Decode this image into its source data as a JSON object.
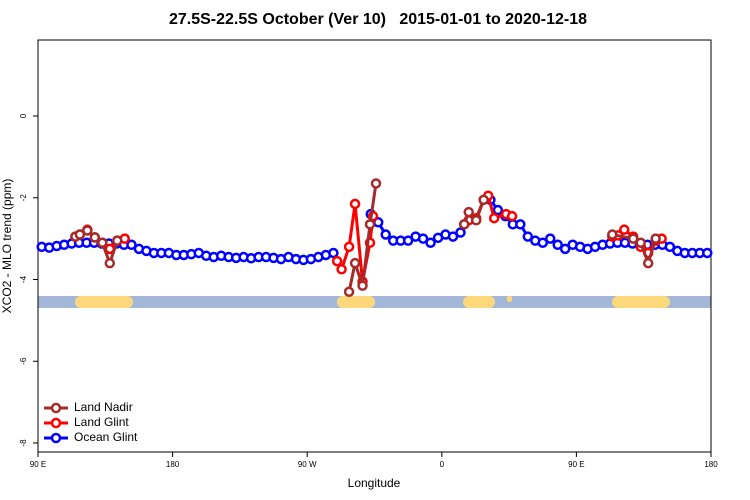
{
  "chart_data": {
    "type": "line",
    "title": "27.5S-22.5S October (Ver 10)   2015-01-01 to 2020-12-18",
    "x_label": "Longitude",
    "y_label": "XCO2 - MLO trend (ppm)",
    "xlim": [
      90,
      540
    ],
    "ylim": [
      -8.22,
      1.86
    ],
    "xticks": [
      {
        "value": 90,
        "label": "90 E"
      },
      {
        "value": 180,
        "label": "180"
      },
      {
        "value": 270,
        "label": "90 W"
      },
      {
        "value": 360,
        "label": "0"
      },
      {
        "value": 450,
        "label": "90 E"
      },
      {
        "value": 540,
        "label": "180"
      }
    ],
    "yticks": [
      0,
      -2,
      -4,
      -6,
      -8
    ],
    "legend": "bottom-left",
    "series": [
      {
        "name": "Land Nadir",
        "color": "#a52a2a",
        "x": [
          115,
          118,
          123,
          128,
          133,
          138,
          143,
          220,
          298,
          302,
          307,
          312,
          316,
          340,
          375,
          378,
          383,
          388,
          440,
          474,
          488,
          493,
          498,
          503
        ],
        "values": [
          -2.95,
          -2.9,
          -2.8,
          -2.97,
          -3.1,
          -3.6,
          -3.05,
          null,
          -4.3,
          -3.6,
          -4.15,
          -2.65,
          -1.65,
          null,
          -2.65,
          -2.35,
          -2.55,
          -2.05,
          null,
          -2.9,
          -3.0,
          -3.1,
          -3.6,
          -3.0
        ]
      },
      {
        "name": "Land Glint",
        "color": "#ff0000",
        "x": [
          115,
          118,
          123,
          128,
          133,
          138,
          143,
          148,
          220,
          290,
          293,
          298,
          302,
          307,
          312,
          314,
          340,
          375,
          378,
          383,
          388,
          391,
          395,
          403,
          407,
          440,
          474,
          478,
          482,
          488,
          493,
          498,
          503,
          507
        ],
        "values": [
          -2.95,
          -2.9,
          -2.78,
          -2.97,
          -3.1,
          -3.25,
          -3.05,
          -3.0,
          null,
          -3.55,
          -3.75,
          -3.2,
          -2.15,
          -4.05,
          -3.1,
          -2.45,
          null,
          -2.65,
          -2.55,
          -2.5,
          -2.05,
          -1.95,
          -2.5,
          -2.4,
          -2.45,
          null,
          -2.95,
          -2.92,
          -2.78,
          -2.95,
          -3.2,
          -3.35,
          -3.05,
          -3.0
        ]
      },
      {
        "name": "Ocean Glint",
        "color": "#0000ff",
        "x": [
          92.5,
          97.5,
          102.5,
          107.5,
          112.5,
          117.5,
          122.5,
          127.5,
          132.5,
          137.5,
          142.5,
          147.5,
          152.5,
          157.5,
          162.5,
          167.5,
          172.5,
          177.5,
          182.5,
          187.5,
          192.5,
          197.5,
          202.5,
          207.5,
          212.5,
          217.5,
          222.5,
          227.5,
          232.5,
          237.5,
          242.5,
          247.5,
          252.5,
          257.5,
          262.5,
          267.5,
          272.5,
          277.5,
          282.5,
          287.5,
          292.5,
          297.5,
          302.5,
          307.5,
          312.5,
          317.5,
          322.5,
          327.5,
          332.5,
          337.5,
          342.5,
          347.5,
          352.5,
          357.5,
          362.5,
          367.5,
          372.5,
          377.5,
          382.5,
          387.5,
          392.5,
          397.5,
          402.5,
          407.5,
          412.5,
          417.5,
          422.5,
          427.5,
          432.5,
          437.5,
          442.5,
          447.5,
          452.5,
          457.5,
          462.5,
          467.5,
          472.5,
          477.5,
          482.5,
          487.5,
          492.5,
          497.5,
          502.5,
          507.5,
          512.5,
          517.5,
          522.5,
          527.5,
          532.5,
          537.5
        ],
        "values": [
          -3.2,
          -3.22,
          -3.18,
          -3.15,
          -3.12,
          -3.1,
          -3.1,
          -3.1,
          -3.12,
          -3.12,
          -3.12,
          -3.15,
          -3.15,
          -3.25,
          -3.3,
          -3.35,
          -3.35,
          -3.35,
          -3.4,
          -3.4,
          -3.38,
          -3.35,
          -3.42,
          -3.45,
          -3.42,
          -3.45,
          -3.47,
          -3.45,
          -3.48,
          -3.45,
          -3.45,
          -3.47,
          -3.5,
          -3.45,
          -3.5,
          -3.52,
          -3.5,
          -3.45,
          -3.4,
          -3.35,
          null,
          null,
          null,
          null,
          -2.4,
          -2.6,
          -2.9,
          -3.05,
          -3.05,
          -3.05,
          -2.95,
          -3.0,
          -3.1,
          -2.98,
          -2.9,
          -2.95,
          -2.85,
          null,
          null,
          null,
          -2.05,
          -2.3,
          -2.45,
          -2.65,
          -2.65,
          -2.95,
          -3.05,
          -3.1,
          -3.0,
          -3.15,
          -3.25,
          -3.15,
          -3.2,
          -3.25,
          -3.2,
          -3.15,
          -3.12,
          -3.1,
          -3.1,
          -3.12,
          -3.12,
          -3.15,
          -3.15,
          -3.15,
          -3.2,
          -3.3,
          -3.35,
          -3.35,
          -3.35,
          -3.35
        ]
      }
    ]
  }
}
